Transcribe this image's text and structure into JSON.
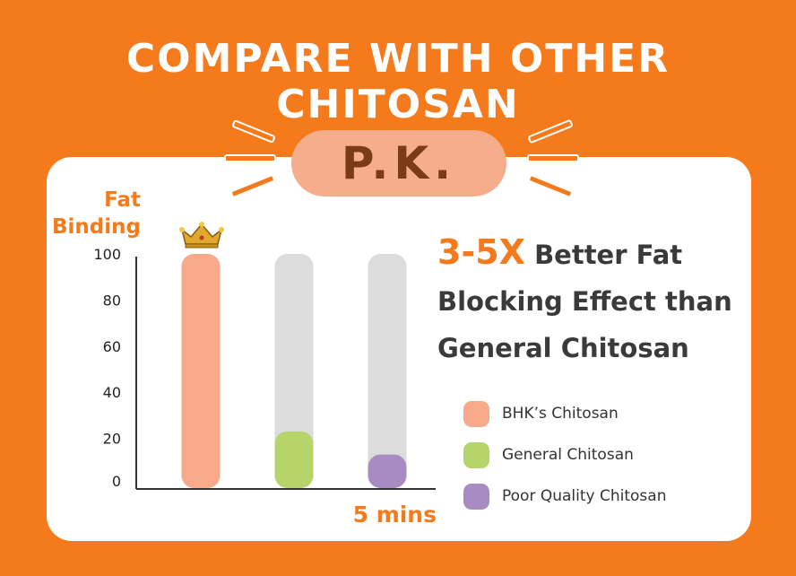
{
  "headline": "COMPARE WITH OTHER CHITOSAN",
  "badge": "P.K.",
  "claim": {
    "highlight": "3-5X",
    "line1": "Better Fat",
    "line2": "Blocking Effect than",
    "line3": "General Chitosan"
  },
  "icons": {
    "crown": "crown-icon"
  },
  "colors": {
    "background": "#f57a1c",
    "accent": "#f57a1c",
    "track": "#dcdcdc",
    "badge": "#f6ad8c"
  },
  "chart_data": {
    "type": "bar",
    "ylabel": "Fat Binding",
    "xlabel": "5 mins",
    "ylim": [
      0,
      100
    ],
    "yticks": [
      0,
      20,
      40,
      60,
      80,
      100
    ],
    "series": [
      {
        "name": "BHK’s Chitosan",
        "value": 100,
        "color": "#f7a98a"
      },
      {
        "name": "General Chitosan",
        "value": 23,
        "color": "#b5d46a"
      },
      {
        "name": "Poor Quality Chitosan",
        "value": 13,
        "color": "#a98bc4"
      }
    ],
    "legend_position": "right"
  }
}
